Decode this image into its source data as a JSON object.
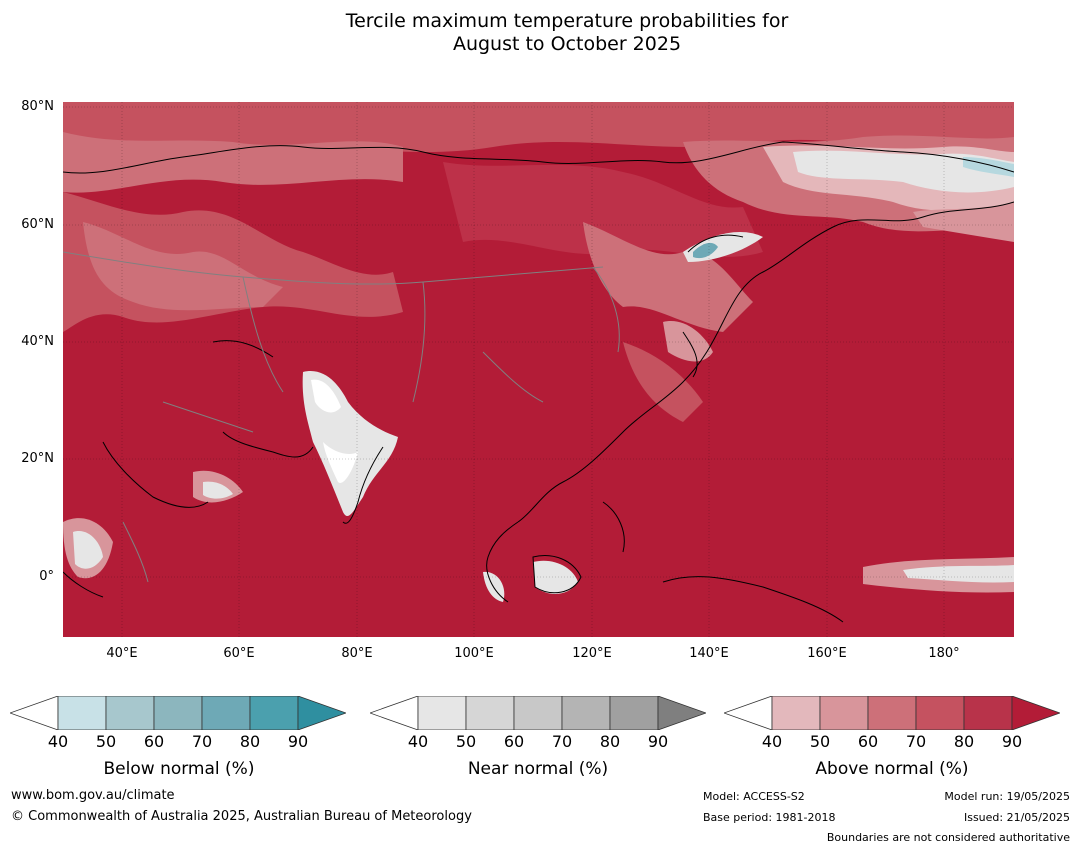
{
  "title": {
    "line1": "Tercile maximum temperature probabilities for",
    "line2": "August to October 2025"
  },
  "map": {
    "lat_labels": [
      "80°N",
      "60°N",
      "40°N",
      "20°N",
      "0°"
    ],
    "lon_labels": [
      "40°E",
      "60°E",
      "80°E",
      "100°E",
      "120°E",
      "140°E",
      "160°E",
      "180°"
    ],
    "colors": {
      "above_90": "#b31c37",
      "above_80": "#bd3149",
      "above_70": "#c5525f",
      "above_60": "#cd7079",
      "above_50": "#d8959b",
      "above_40": "#e4b7ba",
      "near": "#e6e6e6",
      "below": "#b6d8df",
      "border": "#808080",
      "coast": "#000000"
    }
  },
  "legends": [
    {
      "id": "below",
      "label": "Below normal (%)",
      "ticks": [
        "40",
        "50",
        "60",
        "70",
        "80",
        "90"
      ],
      "colors": [
        "#ffffff",
        "#c8e1e7",
        "#a7c7cd",
        "#8cb6be",
        "#6ea9b6",
        "#4ba0ae",
        "#2f8fa0"
      ]
    },
    {
      "id": "near",
      "label": "Near normal (%)",
      "ticks": [
        "40",
        "50",
        "60",
        "70",
        "80",
        "90"
      ],
      "colors": [
        "#ffffff",
        "#e6e6e6",
        "#d6d6d6",
        "#c8c8c8",
        "#b4b4b4",
        "#a0a0a0",
        "#7f7f7f"
      ]
    },
    {
      "id": "above",
      "label": "Above normal (%)",
      "ticks": [
        "40",
        "50",
        "60",
        "70",
        "80",
        "90"
      ],
      "colors": [
        "#ffffff",
        "#e3b8bc",
        "#d8959b",
        "#cd7079",
        "#c55260",
        "#b8334a",
        "#b31c37"
      ]
    }
  ],
  "footer": {
    "website": "www.bom.gov.au/climate",
    "copyright": "© Commonwealth of Australia 2025, Australian Bureau of Meteorology",
    "model": "Model: ACCESS-S2",
    "base_period": "Base period: 1981-2018",
    "model_run": "Model run: 19/05/2025",
    "issued": "Issued: 21/05/2025",
    "disclaimer": "Boundaries are not considered authoritative"
  }
}
